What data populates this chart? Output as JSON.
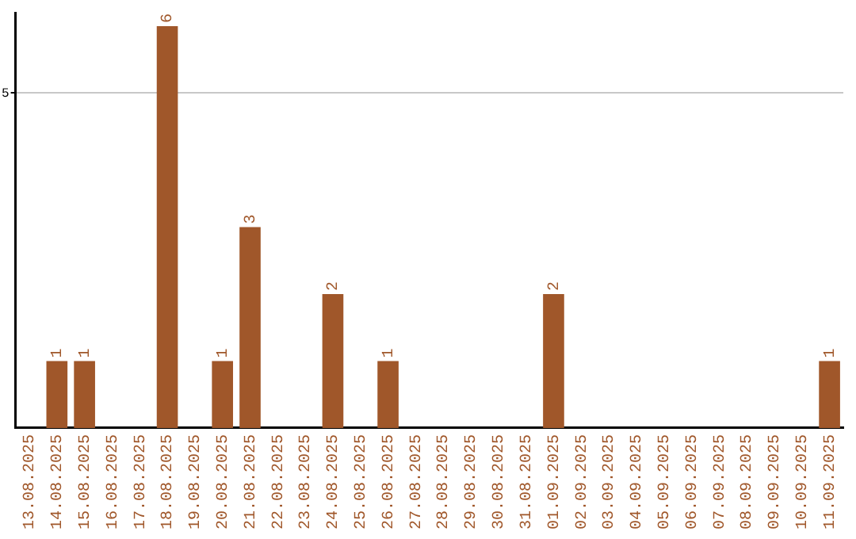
{
  "chart_data": {
    "type": "bar",
    "categories": [
      "13.08.2025",
      "14.08.2025",
      "15.08.2025",
      "16.08.2025",
      "17.08.2025",
      "18.08.2025",
      "19.08.2025",
      "20.08.2025",
      "21.08.2025",
      "22.08.2025",
      "23.08.2025",
      "24.08.2025",
      "25.08.2025",
      "26.08.2025",
      "27.08.2025",
      "28.08.2025",
      "29.08.2025",
      "30.08.2025",
      "31.08.2025",
      "01.09.2025",
      "02.09.2025",
      "03.09.2025",
      "04.09.2025",
      "05.09.2025",
      "06.09.2025",
      "07.09.2025",
      "08.09.2025",
      "09.09.2025",
      "10.09.2025",
      "11.09.2025"
    ],
    "values": [
      0,
      1,
      1,
      0,
      0,
      6,
      0,
      1,
      3,
      0,
      0,
      2,
      0,
      1,
      0,
      0,
      0,
      0,
      0,
      2,
      0,
      0,
      0,
      0,
      0,
      0,
      0,
      0,
      0,
      1
    ],
    "color": "#a0572a",
    "value_labels": [
      null,
      "1",
      "1",
      null,
      null,
      "6",
      null,
      "1",
      "3",
      null,
      null,
      "2",
      null,
      "1",
      null,
      null,
      null,
      null,
      null,
      "2",
      null,
      null,
      null,
      null,
      null,
      null,
      null,
      null,
      null,
      "1"
    ],
    "ylim": [
      0,
      6.2
    ],
    "yticks": [
      5
    ],
    "grid": "y",
    "legend": false
  }
}
